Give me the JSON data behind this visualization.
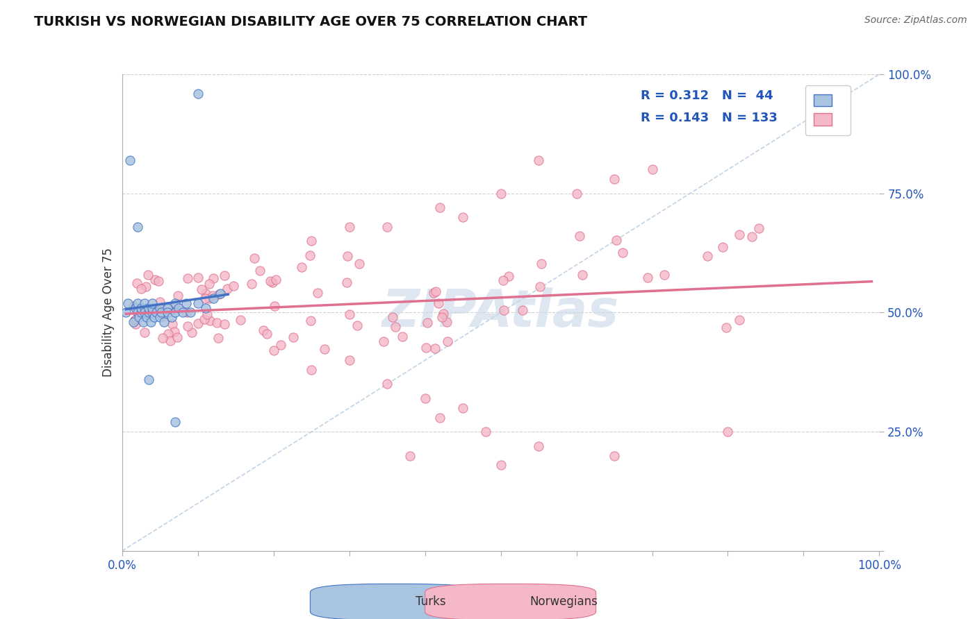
{
  "title": "TURKISH VS NORWEGIAN DISABILITY AGE OVER 75 CORRELATION CHART",
  "source_text": "Source: ZipAtlas.com",
  "ylabel": "Disability Age Over 75",
  "xlim": [
    0,
    1
  ],
  "ylim": [
    0,
    1
  ],
  "turks_R": 0.312,
  "turks_N": 44,
  "norwegians_R": 0.143,
  "norwegians_N": 133,
  "turks_color": "#a8c4e0",
  "turks_line_color": "#4472c4",
  "norwegians_color": "#f4b8c8",
  "norwegians_line_color": "#e07090",
  "diagonal_color": "#b0c8e0",
  "watermark_color": "#c8d8e8",
  "legend_color": "#2255bb"
}
